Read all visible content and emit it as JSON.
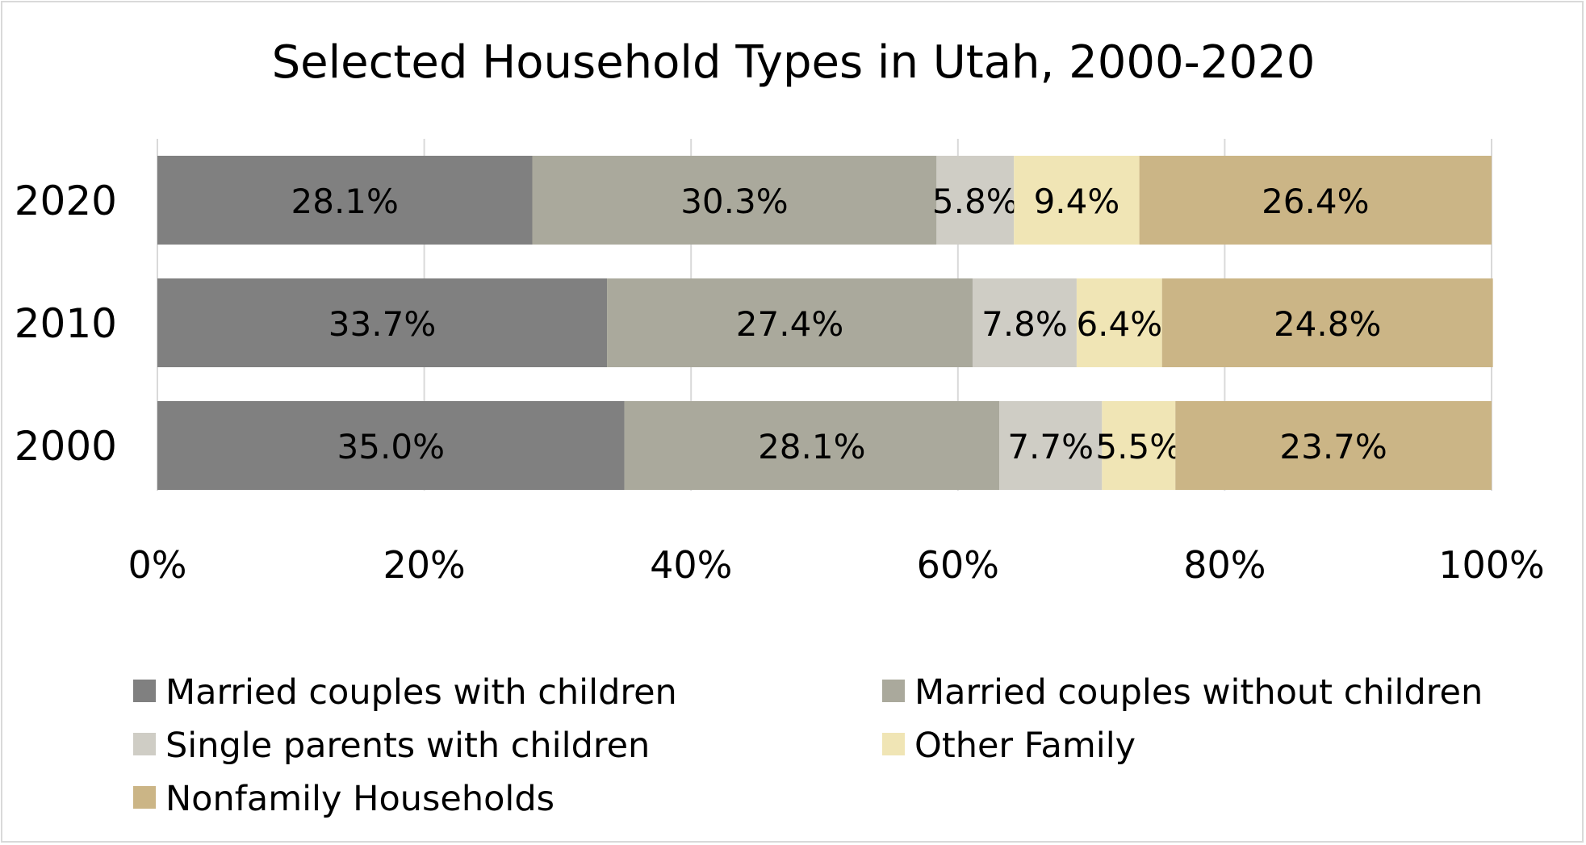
{
  "chart_data": {
    "type": "bar",
    "orientation": "horizontal",
    "stacked": "percent",
    "title": "Selected Household Types in Utah, 2000-2020",
    "xlabel": "",
    "ylabel": "",
    "categories": [
      "2020",
      "2010",
      "2000"
    ],
    "xlim": [
      0,
      100
    ],
    "x_ticks": [
      "0%",
      "20%",
      "40%",
      "60%",
      "80%",
      "100%"
    ],
    "grid": "vertical",
    "legend_position": "bottom",
    "series": [
      {
        "name": "Married couples with children",
        "color": "#808080",
        "values": [
          28.1,
          33.7,
          35.0
        ],
        "labels": [
          "28.1%",
          "33.7%",
          "35.0%"
        ]
      },
      {
        "name": "Married couples without children",
        "color": "#aaa99c",
        "values": [
          30.3,
          27.4,
          28.1
        ],
        "labels": [
          "30.3%",
          "27.4%",
          "28.1%"
        ]
      },
      {
        "name": "Single parents with children",
        "color": "#cfcdc5",
        "values": [
          5.8,
          7.8,
          7.7
        ],
        "labels": [
          "5.8%",
          "7.8%",
          "7.7%"
        ]
      },
      {
        "name": "Other Family",
        "color": "#f0e5b5",
        "values": [
          9.4,
          6.4,
          5.5
        ],
        "labels": [
          "9.4%",
          "6.4%",
          "5.5%"
        ]
      },
      {
        "name": "Nonfamily Households",
        "color": "#cbb586",
        "values": [
          26.4,
          24.8,
          23.7
        ],
        "labels": [
          "26.4%",
          "24.8%",
          "23.7%"
        ]
      }
    ]
  }
}
